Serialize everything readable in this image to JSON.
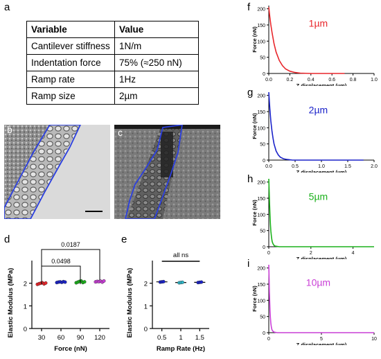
{
  "panel_labels": {
    "a": "a",
    "b": "b",
    "c": "c",
    "d": "d",
    "e": "e",
    "f": "f",
    "g": "g",
    "h": "h",
    "i": "i"
  },
  "table": {
    "headers": [
      "Variable",
      "Value"
    ],
    "rows": [
      [
        "Cantilever stiffness",
        "1N/m"
      ],
      [
        "Indentation force",
        "75% (≈250 nN)"
      ],
      [
        "Ramp rate",
        "1Hz"
      ],
      [
        "Ramp size",
        "2µm"
      ]
    ]
  },
  "images": {
    "b": {
      "description_hidden": ""
    },
    "c": {
      "description_hidden": ""
    }
  },
  "colors": {
    "red": "#e8262b",
    "blue": "#1a22c9",
    "green": "#1bb01b",
    "magenta": "#c93fd6",
    "outline": "#2b3fe0"
  },
  "chart_data": [
    {
      "id": "d",
      "type": "scatter",
      "xlabel": "Force (nN)",
      "ylabel": "Elastic Modulus (MPa)",
      "categories": [
        "30",
        "60",
        "90",
        "120"
      ],
      "ylim": [
        0,
        3
      ],
      "yticks": [
        "0",
        "1",
        "2"
      ],
      "series_colors": [
        "#e8262b",
        "#1a22c9",
        "#1bb01b",
        "#c93fd6"
      ],
      "values": [
        [
          1.95,
          1.98,
          2.0,
          2.02,
          1.97,
          2.01
        ],
        [
          2.03,
          2.05,
          2.06,
          2.04,
          2.07,
          2.05
        ],
        [
          2.02,
          2.05,
          2.08,
          2.1,
          2.03,
          2.06
        ],
        [
          2.06,
          2.08,
          2.07,
          2.09,
          2.05,
          2.1
        ]
      ],
      "annotations": [
        {
          "text": "0.0187",
          "from": "30",
          "to": "120"
        },
        {
          "text": "0.0498",
          "from": "30",
          "to": "90"
        }
      ]
    },
    {
      "id": "e",
      "type": "scatter",
      "xlabel": "Ramp Rate (Hz)",
      "ylabel": "Elastic Modulus (MPa)",
      "categories": [
        "0.5",
        "1",
        "1.5"
      ],
      "ylim": [
        0,
        3
      ],
      "yticks": [
        "0",
        "1",
        "2"
      ],
      "series_colors": [
        "#1a22c9",
        "#2fb7c9",
        "#1a22c9"
      ],
      "values": [
        [
          2.05,
          2.06,
          2.07
        ],
        [
          2.02,
          2.03,
          2.04
        ],
        [
          2.03,
          2.04,
          2.05
        ]
      ],
      "annotations": [
        {
          "text": "all ns",
          "from": "0.5",
          "to": "1.5"
        }
      ]
    },
    {
      "id": "f",
      "type": "line",
      "color": "#e8262b",
      "xlabel": "Z displacement (µm)",
      "ylabel": "Force (nN)",
      "series_label": "1µm",
      "xlim": [
        0,
        1.0
      ],
      "ylim": [
        0,
        210
      ],
      "xticks": [
        "0.0",
        "0.2",
        "0.4",
        "0.6",
        "0.8",
        "1.0"
      ],
      "yticks": [
        "0",
        "50",
        "100",
        "150",
        "200"
      ],
      "x": [
        0.0,
        0.01,
        0.02,
        0.03,
        0.05,
        0.07,
        0.1,
        0.13,
        0.16,
        0.2,
        0.25,
        0.3,
        0.4,
        0.5,
        0.6,
        0.72
      ],
      "y": [
        205,
        175,
        150,
        128,
        92,
        66,
        40,
        24,
        14,
        7,
        3,
        1,
        0,
        0,
        0,
        0
      ]
    },
    {
      "id": "g",
      "type": "line",
      "color": "#1a22c9",
      "xlabel": "Z displacement (µm)",
      "ylabel": "Force (nN)",
      "series_label": "2µm",
      "xlim": [
        0,
        2.0
      ],
      "ylim": [
        0,
        210
      ],
      "xticks": [
        "0.0",
        "0.5",
        "1.0",
        "1.5",
        "2.0"
      ],
      "yticks": [
        "0",
        "50",
        "100",
        "150",
        "200"
      ],
      "x": [
        0.0,
        0.02,
        0.04,
        0.06,
        0.08,
        0.1,
        0.14,
        0.18,
        0.22,
        0.28,
        0.35,
        0.45,
        0.6,
        0.9,
        1.3,
        1.8
      ],
      "y": [
        210,
        160,
        120,
        90,
        68,
        50,
        28,
        16,
        9,
        4,
        2,
        0,
        0,
        0,
        0,
        0
      ]
    },
    {
      "id": "h",
      "type": "line",
      "color": "#1bb01b",
      "xlabel": "Z displacement (µm)",
      "ylabel": "Force (nN)",
      "series_label": "5µm",
      "xlim": [
        0,
        5
      ],
      "ylim": [
        0,
        210
      ],
      "xticks": [
        "0",
        "2",
        "4"
      ],
      "yticks": [
        "0",
        "50",
        "100",
        "150",
        "200"
      ],
      "x": [
        0.0,
        0.02,
        0.04,
        0.06,
        0.08,
        0.1,
        0.13,
        0.16,
        0.2,
        0.25,
        0.3,
        0.5,
        1.0,
        2.0,
        3.5,
        5.0
      ],
      "y": [
        210,
        170,
        130,
        95,
        68,
        48,
        28,
        16,
        9,
        4,
        2,
        0,
        0,
        0,
        0,
        0
      ]
    },
    {
      "id": "i",
      "type": "line",
      "color": "#c93fd6",
      "xlabel": "Z displacement (µm)",
      "ylabel": "Force (nN)",
      "series_label": "10µm",
      "xlim": [
        0,
        10
      ],
      "ylim": [
        0,
        210
      ],
      "xticks": [
        "0",
        "5",
        "10"
      ],
      "yticks": [
        "0",
        "50",
        "100",
        "150",
        "200"
      ],
      "x": [
        0.0,
        0.03,
        0.06,
        0.09,
        0.12,
        0.15,
        0.2,
        0.25,
        0.3,
        0.4,
        0.5,
        0.8,
        1.5,
        4,
        7,
        10
      ],
      "y": [
        210,
        165,
        125,
        92,
        66,
        48,
        28,
        16,
        9,
        4,
        2,
        0,
        0,
        0,
        0,
        0
      ]
    }
  ]
}
